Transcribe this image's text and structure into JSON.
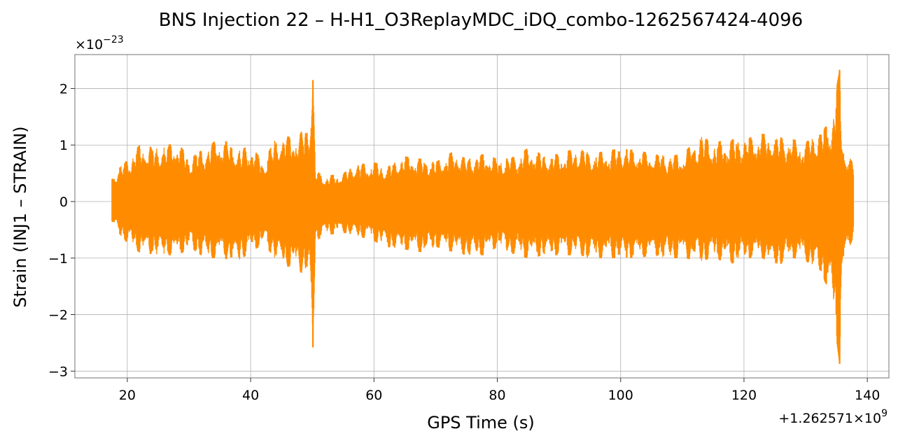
{
  "chart_data": {
    "type": "line",
    "title": "BNS Injection 22 – H-H1_O3ReplayMDC_iDQ_combo-1262567424-4096",
    "xlabel": "GPS Time (s)",
    "ylabel": "Strain (INJ1 – STRAIN)",
    "y_multiplier_base": "×10",
    "y_multiplier_exp": "−23",
    "x_offset_prefix": "+1.262571×10",
    "x_offset_exp": "9",
    "xlim": [
      11.5,
      143.5
    ],
    "ylim": [
      -3.12,
      2.6
    ],
    "xticks": [
      20,
      40,
      60,
      80,
      100,
      120,
      140
    ],
    "xtick_labels": [
      "20",
      "40",
      "60",
      "80",
      "100",
      "120",
      "140"
    ],
    "yticks": [
      -3,
      -2,
      -1,
      0,
      1,
      2
    ],
    "ytick_labels": [
      "−3",
      "−2",
      "−1",
      "0",
      "1",
      "2"
    ],
    "grid": true,
    "series": [
      {
        "color": "#ff8c00",
        "envelope_x": [
          17.5,
          20,
          22,
          25,
          28,
          30,
          33,
          35,
          38,
          40,
          42,
          44,
          46,
          48,
          49.5,
          50.1,
          50.5,
          52,
          55,
          57,
          60,
          62,
          65,
          68,
          70,
          73,
          75,
          78,
          80,
          83,
          85,
          88,
          90,
          93,
          95,
          98,
          100,
          103,
          105,
          108,
          110,
          113,
          115,
          118,
          120,
          123,
          125,
          128,
          130,
          132,
          134,
          135.5,
          136,
          137.8
        ],
        "envelope_upper": [
          0.45,
          0.75,
          1.0,
          0.95,
          1.05,
          0.8,
          0.95,
          1.15,
          0.9,
          1.0,
          0.7,
          1.1,
          1.15,
          1.2,
          1.4,
          2.15,
          0.55,
          0.45,
          0.5,
          0.65,
          0.7,
          0.6,
          0.8,
          0.75,
          0.7,
          0.9,
          0.75,
          0.85,
          0.75,
          0.8,
          0.95,
          0.8,
          0.85,
          0.95,
          0.85,
          0.9,
          0.95,
          0.9,
          0.85,
          0.8,
          0.85,
          1.15,
          1.05,
          1.1,
          1.1,
          1.2,
          1.15,
          1.1,
          1.05,
          1.2,
          1.4,
          2.33,
          1.0,
          0.65
        ],
        "envelope_lower": [
          -0.4,
          -0.75,
          -0.9,
          -0.95,
          -0.95,
          -0.85,
          -1.0,
          -1.0,
          -1.05,
          -0.9,
          -0.75,
          -1.0,
          -1.15,
          -1.25,
          -1.3,
          -2.58,
          -0.7,
          -0.6,
          -0.55,
          -0.6,
          -0.7,
          -0.8,
          -0.85,
          -0.9,
          -0.8,
          -0.9,
          -0.95,
          -0.95,
          -0.8,
          -0.95,
          -1.0,
          -0.95,
          -0.95,
          -0.95,
          -1.0,
          -1.0,
          -1.0,
          -1.0,
          -0.95,
          -1.0,
          -1.0,
          -1.05,
          -1.0,
          -1.1,
          -1.0,
          -1.0,
          -1.15,
          -1.0,
          -1.05,
          -1.2,
          -1.6,
          -2.87,
          -1.15,
          -0.6
        ]
      }
    ]
  }
}
